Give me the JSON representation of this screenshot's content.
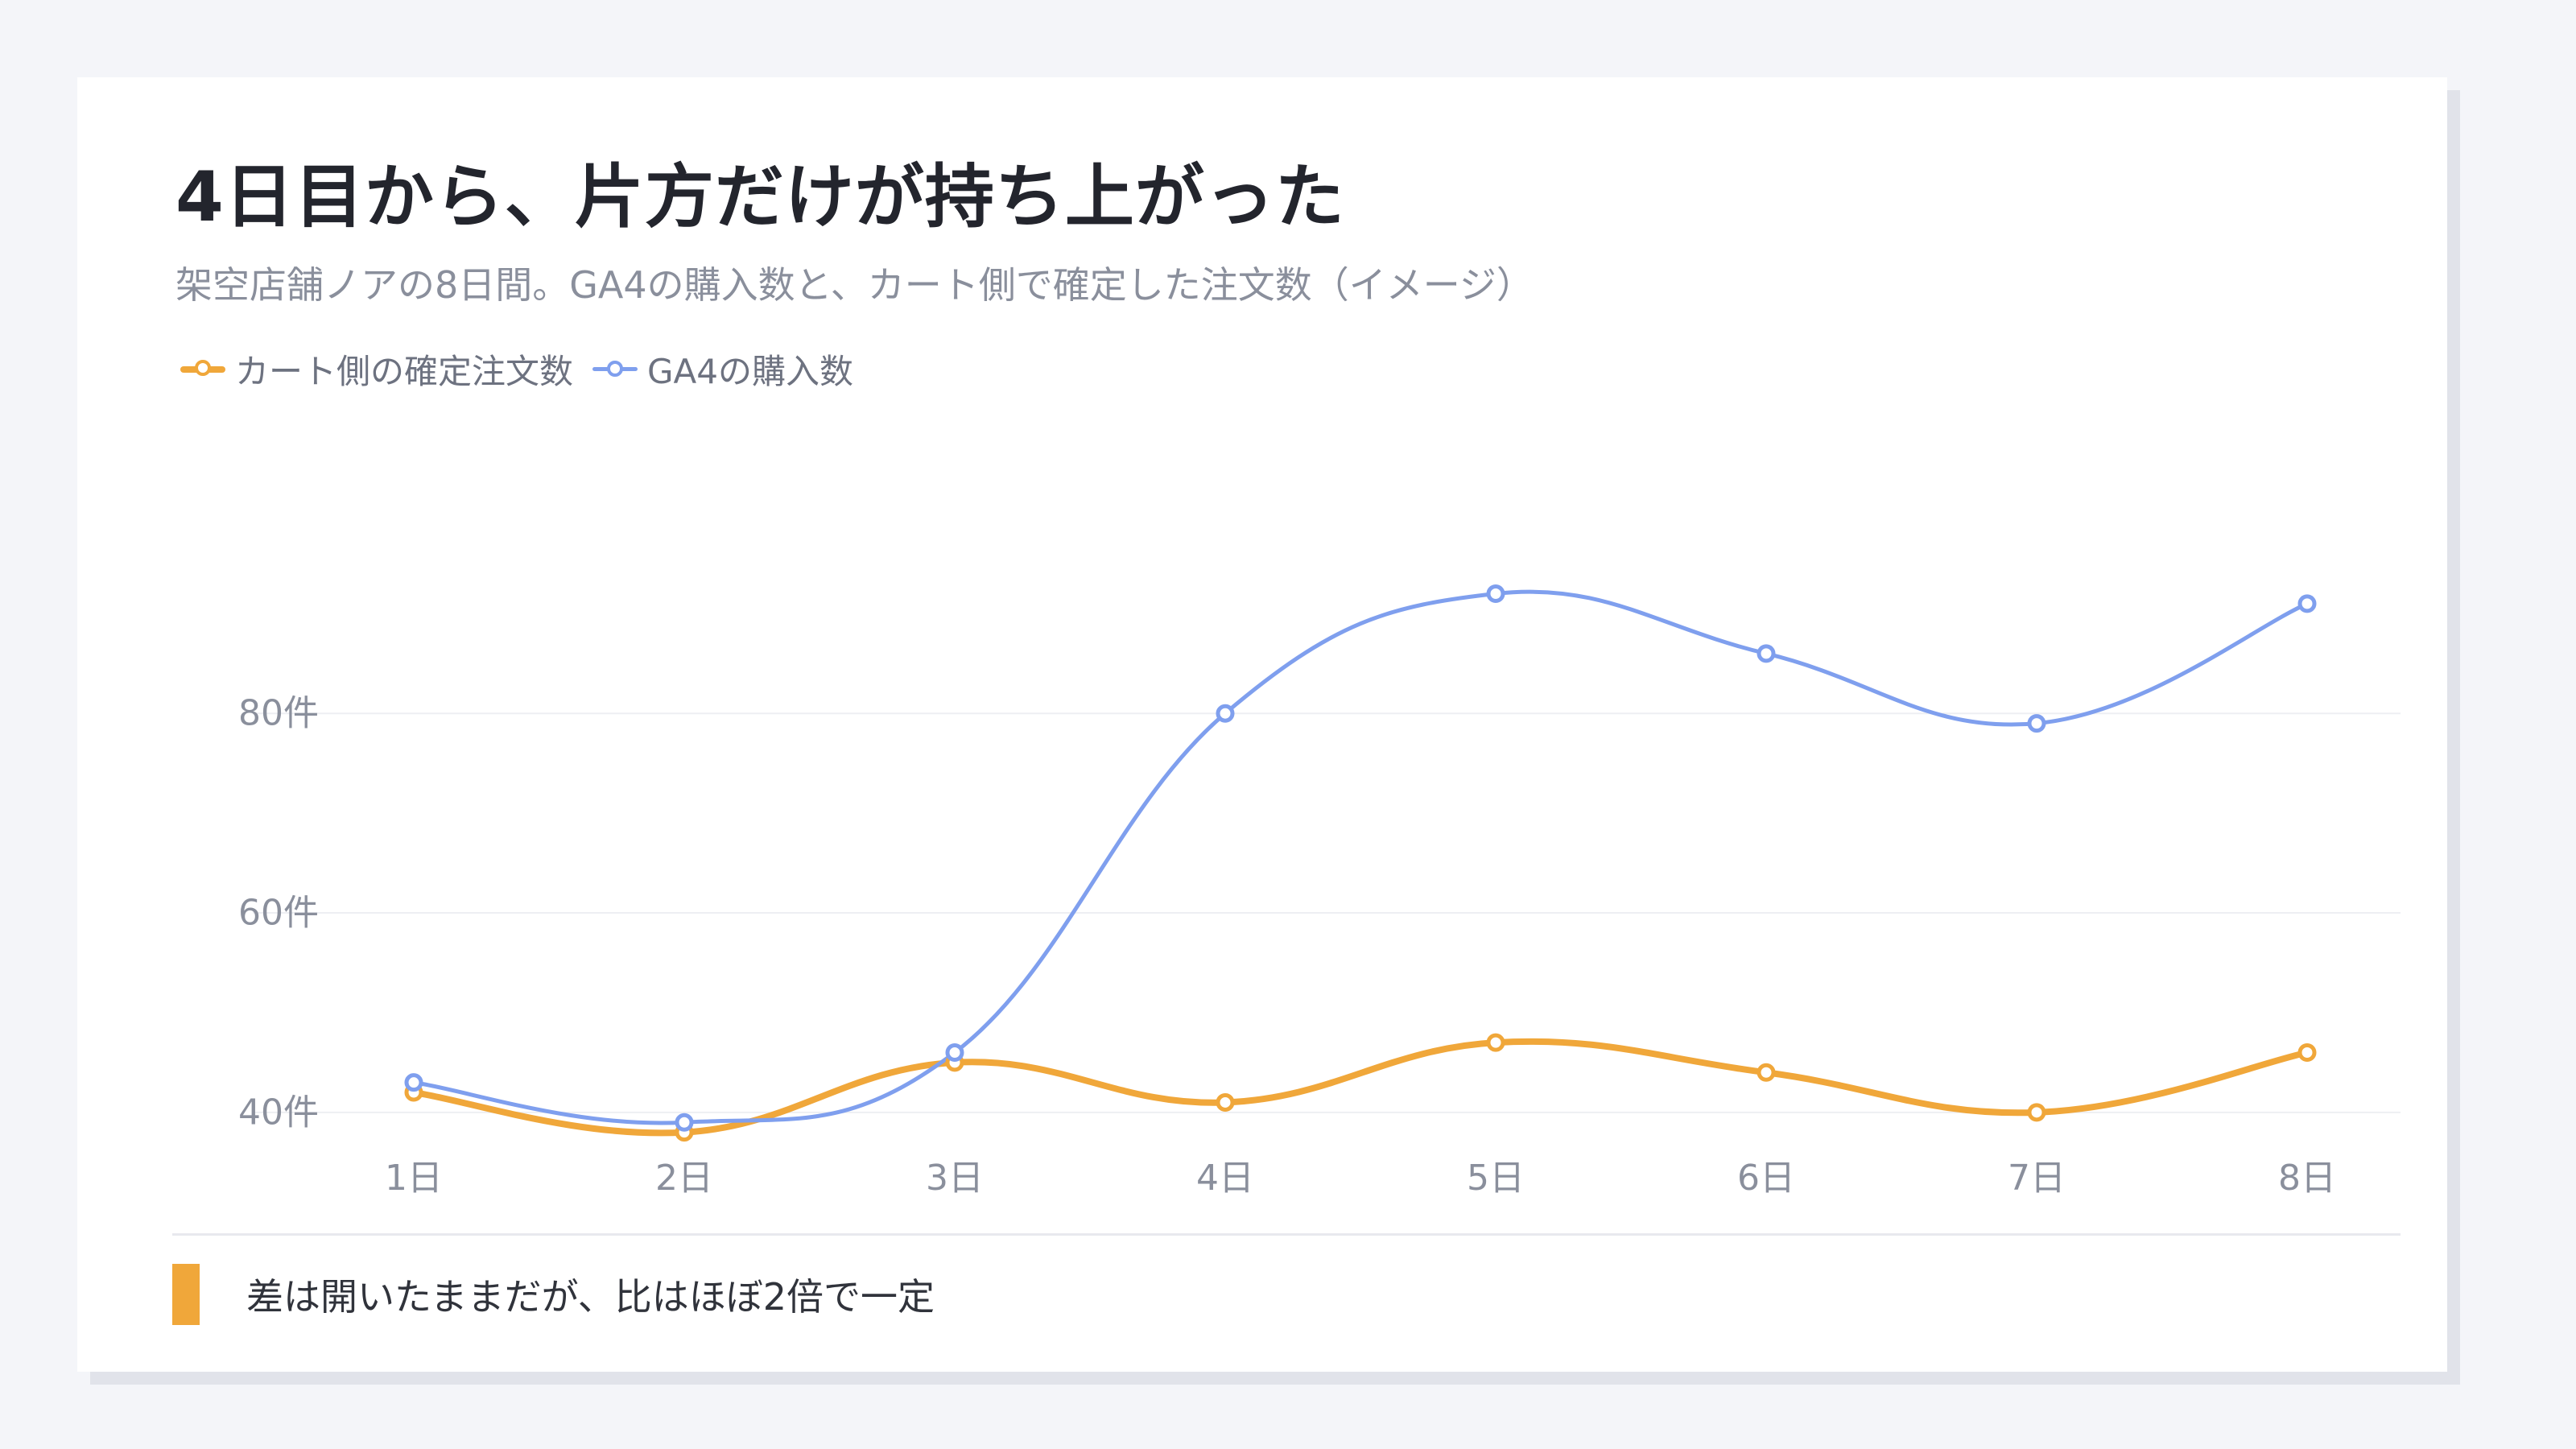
{
  "title": "4日目から、片方だけが持ち上がった",
  "subtitle": "架空店舗ノアの8日間。GA4の購入数と、カート側で確定した注文数（イメージ）",
  "legend": {
    "cart": "カート側の確定注文数",
    "ga4": "GA4の購入数"
  },
  "note": "差は開いたままだが、比はほぼ2倍で一定",
  "colors": {
    "cart": "#f0a73a",
    "ga4": "#7f9fee",
    "grid": "#eeeff3",
    "tick_text": "#8a8f9c"
  },
  "chart_data": {
    "type": "line",
    "categories": [
      "1日",
      "2日",
      "3日",
      "4日",
      "5日",
      "6日",
      "7日",
      "8日"
    ],
    "series": [
      {
        "name": "カート側の確定注文数",
        "values": [
          42,
          38,
          45,
          41,
          47,
          44,
          40,
          46
        ]
      },
      {
        "name": "GA4の購入数",
        "values": [
          43,
          39,
          46,
          80,
          92,
          86,
          79,
          91
        ]
      }
    ],
    "yticks": [
      {
        "value": 40,
        "label": "40件"
      },
      {
        "value": 60,
        "label": "60件"
      },
      {
        "value": 80,
        "label": "80件"
      }
    ],
    "ylim": [
      32.4,
      101
    ],
    "grid": true,
    "smooth": true,
    "legend_position": "top-left"
  }
}
